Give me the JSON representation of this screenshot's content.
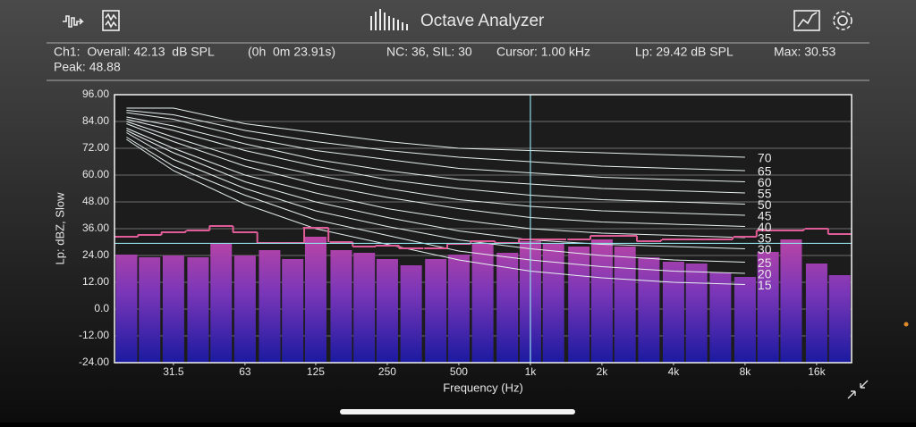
{
  "header": {
    "title": "Octave Analyzer"
  },
  "status": {
    "overall": "Ch1:  Overall: 42.13  dB SPL",
    "time": "(0h  0m 23.91s)",
    "nc_sil": "NC: 36, SIL: 30",
    "cursor": "Cursor: 1.00 kHz",
    "lp": "Lp: 29.42 dB SPL",
    "max": "Max: 30.53",
    "peak": "Peak: 48.88"
  },
  "chart_data": {
    "type": "bar",
    "x_label": "Frequency (Hz)",
    "y_label": "Lp: dBZ, Slow",
    "xscale": "log",
    "xlim": [
      17.8,
      22449
    ],
    "xticks": [
      31.5,
      63,
      125,
      250,
      500,
      {
        "value": 1000,
        "label": "1k"
      },
      {
        "value": 2000,
        "label": "2k"
      },
      {
        "value": 4000,
        "label": "4k"
      },
      {
        "value": 8000,
        "label": "8k"
      },
      {
        "value": 16000,
        "label": "16k"
      }
    ],
    "ylim": [
      -24,
      96
    ],
    "yticks": [
      {
        "value": 96,
        "label": "96.00"
      },
      {
        "value": 84,
        "label": "84.00"
      },
      {
        "value": 72,
        "label": "72.00"
      },
      {
        "value": 60,
        "label": "60.00"
      },
      {
        "value": 48,
        "label": "48.00"
      },
      {
        "value": 36,
        "label": "36.00"
      },
      {
        "value": 24,
        "label": "24.00"
      },
      {
        "value": 12,
        "label": "12.00"
      },
      {
        "value": 0,
        "label": "0.0"
      },
      {
        "value": -12,
        "label": "-12.00"
      },
      {
        "value": -24,
        "label": "-24.00"
      }
    ],
    "grid": true,
    "x": [
      20,
      25,
      31.5,
      40,
      50,
      63,
      80,
      100,
      125,
      160,
      200,
      250,
      315,
      400,
      500,
      630,
      800,
      1000,
      1250,
      1600,
      2000,
      2500,
      3150,
      4000,
      5000,
      6300,
      8000,
      10000,
      12500,
      16000,
      20000
    ],
    "values": [
      24.4,
      23.2,
      24,
      23.2,
      29.2,
      24,
      26.4,
      22.4,
      32.4,
      26.4,
      25.2,
      22.4,
      19.6,
      22.4,
      24.4,
      29.6,
      25.2,
      30.4,
      29.6,
      28,
      31.2,
      28,
      23.2,
      21.2,
      20.4,
      16.4,
      14.4,
      25.6,
      31.2,
      20.4,
      15.2
    ],
    "bar_colors": [
      "#cc4aa0",
      "#7a36b8",
      "#1a1aa0"
    ],
    "max_hold": {
      "color": "#e05c98",
      "values": [
        32.4,
        33.2,
        34.4,
        35.2,
        37.2,
        34.4,
        29.6,
        29.6,
        36.4,
        30,
        28,
        28.4,
        27.2,
        27.2,
        29.2,
        30.4,
        29.6,
        31.2,
        31.2,
        31.2,
        32.8,
        32.8,
        30.4,
        31.2,
        31.2,
        31.2,
        32.4,
        35.2,
        35.2,
        36,
        33.6
      ]
    },
    "nc_curves": {
      "color": "#e6f0f0",
      "x": [
        20,
        31.5,
        63,
        125,
        250,
        500,
        1000,
        2000,
        4000,
        8000
      ],
      "series": [
        {
          "name": "70",
          "values": [
            90,
            90,
            83,
            79,
            75,
            72,
            71,
            70,
            69,
            68
          ]
        },
        {
          "name": "65",
          "values": [
            89,
            87,
            80,
            75,
            71,
            68,
            66,
            64,
            63,
            62
          ]
        },
        {
          "name": "60",
          "values": [
            88,
            85,
            77,
            71,
            67,
            63,
            61,
            59,
            58,
            57
          ]
        },
        {
          "name": "55",
          "values": [
            86,
            82,
            74,
            67,
            62,
            58,
            56,
            54,
            53,
            52
          ]
        },
        {
          "name": "50",
          "values": [
            85,
            80,
            71,
            64,
            58,
            54,
            51,
            49,
            48,
            47
          ]
        },
        {
          "name": "45",
          "values": [
            84,
            77,
            67,
            60,
            54,
            49,
            46,
            44,
            43,
            42
          ]
        },
        {
          "name": "40",
          "values": [
            83,
            75,
            64,
            56,
            50,
            45,
            41,
            39,
            38,
            37
          ]
        },
        {
          "name": "35",
          "values": [
            81,
            72,
            60,
            52,
            45,
            40,
            36,
            34,
            33,
            32
          ]
        },
        {
          "name": "30",
          "values": [
            80,
            70,
            57,
            48,
            41,
            35,
            31,
            29,
            28,
            27
          ]
        },
        {
          "name": "25",
          "values": [
            79,
            67,
            54,
            44,
            37,
            31,
            27,
            24,
            22,
            21
          ]
        },
        {
          "name": "20",
          "values": [
            77,
            64,
            51,
            40,
            33,
            26,
            22,
            19,
            17,
            16
          ]
        },
        {
          "name": "15",
          "values": [
            76,
            62,
            47,
            36,
            29,
            22,
            17,
            14,
            12,
            11
          ]
        }
      ]
    },
    "cursor_color": "#8fdde6",
    "cursor_x": 1000,
    "cursor_y": 29.42
  }
}
